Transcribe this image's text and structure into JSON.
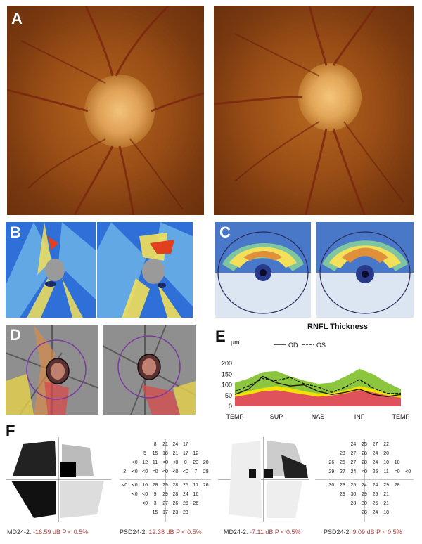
{
  "panels": {
    "a": "A",
    "b": "B",
    "c": "C",
    "d": "D",
    "e": "E",
    "f": "F"
  },
  "rnfl": {
    "title": "RNFL Thickness",
    "unit": "µm",
    "legend_od": "OD",
    "legend_os": "OS",
    "colors": {
      "normal": "#8cc63f",
      "borderline": "#f2e200",
      "abnormal": "#e0525b"
    }
  },
  "chart_data": {
    "type": "area",
    "title": "RNFL Thickness",
    "ylabel": "µm",
    "ylim": [
      0,
      250
    ],
    "yticks": [
      0,
      50,
      100,
      150,
      200
    ],
    "xcategories": [
      "TEMP",
      "SUP",
      "NAS",
      "INF",
      "TEMP"
    ],
    "x": [
      0,
      1,
      2,
      3,
      4,
      5,
      6,
      7,
      8,
      9,
      10,
      11,
      12
    ],
    "bands": {
      "abnormal_upper": [
        45,
        55,
        70,
        75,
        65,
        55,
        45,
        50,
        60,
        75,
        65,
        50,
        40
      ],
      "borderline_upper": [
        55,
        70,
        85,
        95,
        85,
        70,
        60,
        62,
        75,
        95,
        80,
        60,
        50
      ],
      "normal_upper": [
        110,
        130,
        160,
        165,
        140,
        120,
        105,
        110,
        140,
        175,
        150,
        110,
        80
      ]
    },
    "series": [
      {
        "name": "OD",
        "values": [
          55,
          80,
          140,
          110,
          95,
          100,
          70,
          55,
          65,
          80,
          55,
          45,
          55
        ]
      },
      {
        "name": "OS",
        "values": [
          70,
          95,
          130,
          120,
          135,
          105,
          90,
          65,
          90,
          125,
          85,
          60,
          60
        ]
      }
    ]
  },
  "vf_left": {
    "numbers": [
      [
        "",
        "",
        "",
        "8",
        "21",
        "24",
        "17",
        "",
        ""
      ],
      [
        "",
        "",
        "5",
        "15",
        "18",
        "21",
        "17",
        "12",
        ""
      ],
      [
        "",
        "<0",
        "12",
        "11",
        "<0",
        "<0",
        "0",
        "23",
        "20"
      ],
      [
        "2",
        "<0",
        "<0",
        "<0",
        "<0",
        "<0",
        "<0",
        "7",
        "28"
      ],
      [
        "<0",
        "<0",
        "16",
        "28",
        "29",
        "28",
        "25",
        "17",
        "26"
      ],
      [
        "",
        "<0",
        "<0",
        "9",
        "29",
        "28",
        "24",
        "16",
        ""
      ],
      [
        "",
        "",
        "<0",
        "3",
        "27",
        "26",
        "26",
        "26",
        ""
      ],
      [
        "",
        "",
        "",
        "15",
        "17",
        "23",
        "23",
        "",
        ""
      ]
    ],
    "md_label": "MD24-2:",
    "md_value": "-16.59 dB P < 0.5%",
    "psd_label": "PSD24-2:",
    "psd_value": "12.38 dB P < 0.5%"
  },
  "vf_right": {
    "numbers": [
      [
        "",
        "",
        "",
        "24",
        "25",
        "27",
        "22",
        "",
        ""
      ],
      [
        "",
        "",
        "23",
        "27",
        "28",
        "24",
        "20",
        "",
        ""
      ],
      [
        "",
        "26",
        "26",
        "27",
        "28",
        "24",
        "10",
        "10",
        ""
      ],
      [
        "",
        "29",
        "27",
        "24",
        "<0",
        "25",
        "11",
        "<0",
        "<0"
      ],
      [
        "",
        "30",
        "23",
        "25",
        "24",
        "24",
        "29",
        "28",
        ""
      ],
      [
        "",
        "",
        "29",
        "30",
        "29",
        "25",
        "21",
        "",
        ""
      ],
      [
        "",
        "",
        "",
        "28",
        "30",
        "26",
        "21",
        "",
        ""
      ],
      [
        "",
        "",
        "",
        "",
        "28",
        "24",
        "18",
        "",
        ""
      ]
    ],
    "md_label": "MD24-2:",
    "md_value": "-7.11 dB P < 0.5%",
    "psd_label": "PSD24-2:",
    "psd_value": "9.09 dB P < 0.5%"
  }
}
